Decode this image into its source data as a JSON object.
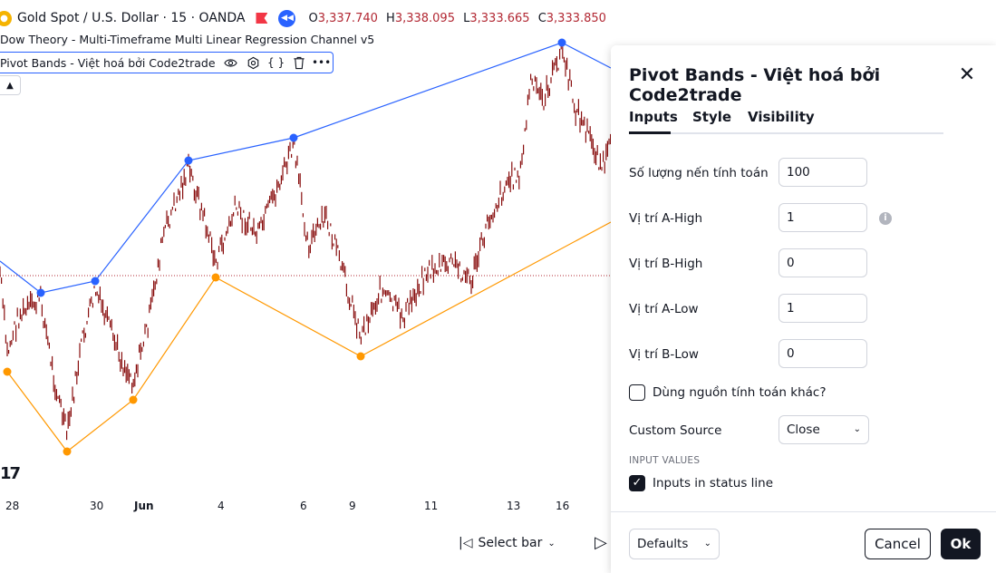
{
  "symbol": {
    "title": "Gold Spot / U.S. Dollar · 15 · OANDA",
    "ohlc": [
      {
        "key": "O",
        "value": "3,337.740"
      },
      {
        "key": "H",
        "value": "3,338.095"
      },
      {
        "key": "L",
        "value": "3,333.665"
      },
      {
        "key": "C",
        "value": "3,333.850"
      }
    ]
  },
  "indicators": {
    "first": "Dow Theory - Multi-Timeframe Multi Linear Regression Channel v5",
    "second": "Pivot Bands - Việt hoá bởi Code2trade"
  },
  "chart": {
    "logo": "17",
    "xaxis": [
      "28",
      "30",
      "Jun",
      "4",
      "6",
      "9",
      "11",
      "13",
      "16"
    ],
    "select_bar": "Select bar",
    "colors": {
      "candles": "#880e0e",
      "upper_band": "#2962ff",
      "lower_band": "#ff9800",
      "price_line": "#b22833"
    }
  },
  "dialog": {
    "title": "Pivot Bands - Việt hoá bởi Code2trade",
    "tabs": [
      "Inputs",
      "Style",
      "Visibility"
    ],
    "active_tab": "Inputs",
    "fields": [
      {
        "label": "Số lượng nến tính toán",
        "value": "100"
      },
      {
        "label": "Vị trí A-High",
        "value": "1"
      },
      {
        "label": "Vị trí B-High",
        "value": "0"
      },
      {
        "label": "Vị trí A-Low",
        "value": "1"
      },
      {
        "label": "Vị trí B-Low",
        "value": "0"
      }
    ],
    "alt_source_checkbox": {
      "label": "Dùng nguồn tính toán khác?",
      "checked": false
    },
    "custom_source": {
      "label": "Custom Source",
      "value": "Close"
    },
    "section_header": "INPUT VALUES",
    "status_line_checkbox": {
      "label": "Inputs in status line",
      "checked": true
    },
    "defaults_label": "Defaults",
    "cancel_label": "Cancel",
    "ok_label": "Ok"
  }
}
